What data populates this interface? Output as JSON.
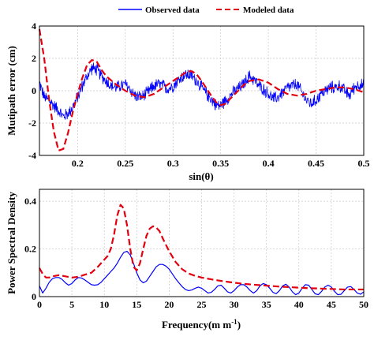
{
  "legend": {
    "items": [
      {
        "label": "Observed data",
        "color": "#0000ff",
        "style": "solid"
      },
      {
        "label": "Modeled data",
        "color": "#e3000f",
        "style": "dashed"
      }
    ]
  },
  "chart_data": [
    {
      "type": "line",
      "xlabel": "sin(θ)",
      "ylabel": "Mutipath error (cm)",
      "xlim": [
        0.16,
        0.5
      ],
      "ylim": [
        -4,
        4
      ],
      "xticks": [
        "0.2",
        "0.25",
        "0.3",
        "0.35",
        "0.4",
        "0.45",
        "0.5"
      ],
      "xtick_values": [
        0.2,
        0.25,
        0.3,
        0.35,
        0.4,
        0.45,
        0.5
      ],
      "yticks": [
        "-4",
        "-2",
        "0",
        "2",
        "4"
      ],
      "ytick_values": [
        -4,
        -2,
        0,
        2,
        4
      ],
      "grid": true,
      "series": [
        {
          "name": "Observed data",
          "color": "#0000ff",
          "style": "solid",
          "noise_amplitude": 0.45,
          "x": [
            0.16,
            0.165,
            0.17,
            0.175,
            0.18,
            0.185,
            0.19,
            0.195,
            0.2,
            0.205,
            0.21,
            0.215,
            0.22,
            0.225,
            0.23,
            0.235,
            0.24,
            0.245,
            0.25,
            0.255,
            0.26,
            0.265,
            0.27,
            0.275,
            0.28,
            0.285,
            0.29,
            0.295,
            0.3,
            0.305,
            0.31,
            0.315,
            0.32,
            0.325,
            0.33,
            0.335,
            0.34,
            0.345,
            0.35,
            0.355,
            0.36,
            0.365,
            0.37,
            0.375,
            0.38,
            0.385,
            0.39,
            0.395,
            0.4,
            0.405,
            0.41,
            0.415,
            0.42,
            0.425,
            0.43,
            0.435,
            0.44,
            0.445,
            0.45,
            0.455,
            0.46,
            0.465,
            0.47,
            0.475,
            0.48,
            0.485,
            0.49,
            0.495,
            0.5
          ],
          "y": [
            0.5,
            -0.4,
            -0.6,
            -0.9,
            -1.2,
            -1.6,
            -1.4,
            -1.0,
            -0.4,
            0.3,
            0.9,
            1.4,
            1.3,
            0.9,
            0.6,
            0.3,
            0.2,
            0.3,
            0.4,
            0.1,
            -0.3,
            -0.4,
            -0.3,
            0.0,
            0.3,
            0.4,
            0.3,
            0.1,
            0.3,
            0.6,
            0.9,
            1.0,
            0.9,
            0.6,
            0.2,
            -0.2,
            -0.5,
            -0.9,
            -0.9,
            -0.6,
            -0.3,
            0.0,
            0.2,
            0.5,
            0.9,
            0.7,
            0.3,
            0.1,
            -0.2,
            -0.5,
            -0.4,
            -0.1,
            0.2,
            0.3,
            0.4,
            -0.1,
            -0.6,
            -0.8,
            -0.6,
            -0.2,
            0.0,
            0.2,
            0.2,
            0.3,
            0.0,
            -0.3,
            0.2,
            0.4,
            0.3
          ]
        },
        {
          "name": "Modeled data",
          "color": "#e3000f",
          "style": "dashed",
          "x": [
            0.16,
            0.165,
            0.17,
            0.175,
            0.18,
            0.185,
            0.19,
            0.195,
            0.2,
            0.205,
            0.21,
            0.215,
            0.22,
            0.225,
            0.23,
            0.24,
            0.25,
            0.26,
            0.27,
            0.28,
            0.29,
            0.3,
            0.31,
            0.315,
            0.32,
            0.325,
            0.33,
            0.34,
            0.345,
            0.35,
            0.355,
            0.36,
            0.37,
            0.375,
            0.38,
            0.39,
            0.4,
            0.41,
            0.42,
            0.43,
            0.44,
            0.45,
            0.46,
            0.47,
            0.48,
            0.49,
            0.5
          ],
          "y": [
            3.8,
            2.0,
            -0.5,
            -2.5,
            -3.7,
            -3.6,
            -2.6,
            -1.3,
            -0.2,
            0.8,
            1.6,
            1.9,
            1.8,
            1.3,
            0.9,
            0.4,
            0.0,
            -0.3,
            -0.4,
            -0.2,
            0.2,
            0.6,
            1.0,
            1.2,
            1.2,
            1.0,
            0.6,
            -0.3,
            -0.7,
            -0.9,
            -0.8,
            -0.5,
            0.1,
            0.4,
            0.6,
            0.7,
            0.5,
            0.1,
            -0.2,
            -0.3,
            -0.2,
            0.0,
            0.1,
            0.2,
            0.2,
            0.1,
            -0.1
          ]
        }
      ]
    },
    {
      "type": "line",
      "xlabel": "Frequency(m m",
      "xlabel_sup": "-1",
      "xlabel_close": ")",
      "ylabel": "Power Spectral Density",
      "xlim": [
        0,
        50
      ],
      "ylim": [
        0,
        0.45
      ],
      "xticks": [
        "0",
        "5",
        "10",
        "15",
        "20",
        "25",
        "30",
        "35",
        "40",
        "45",
        "50"
      ],
      "xtick_values": [
        0,
        5,
        10,
        15,
        20,
        25,
        30,
        35,
        40,
        45,
        50
      ],
      "yticks": [
        "0",
        "0.2",
        "0.4"
      ],
      "ytick_values": [
        0,
        0.2,
        0.4
      ],
      "grid": true,
      "series": [
        {
          "name": "Observed data",
          "color": "#0000ff",
          "style": "solid",
          "x": [
            0,
            0.5,
            1,
            1.5,
            2,
            2.5,
            3,
            3.5,
            4,
            4.5,
            5,
            5.5,
            6,
            6.5,
            7,
            7.5,
            8,
            8.5,
            9,
            9.5,
            10,
            10.5,
            11,
            11.5,
            12,
            12.5,
            13,
            13.5,
            14,
            14.5,
            15,
            15.5,
            16,
            16.5,
            17,
            17.5,
            18,
            18.5,
            19,
            19.5,
            20,
            20.5,
            21,
            21.5,
            22,
            22.5,
            23,
            23.5,
            24,
            24.5,
            25,
            25.5,
            26,
            26.5,
            27,
            27.5,
            28,
            28.5,
            29,
            29.5,
            30,
            30.5,
            31,
            31.5,
            32,
            32.5,
            33,
            33.5,
            34,
            34.5,
            35,
            35.5,
            36,
            36.5,
            37,
            37.5,
            38,
            38.5,
            39,
            39.5,
            40,
            40.5,
            41,
            41.5,
            42,
            42.5,
            43,
            43.5,
            44,
            44.5,
            45,
            45.5,
            46,
            46.5,
            47,
            47.5,
            48,
            48.5,
            49,
            49.5,
            50
          ],
          "y": [
            0.045,
            0.015,
            0.035,
            0.06,
            0.075,
            0.08,
            0.08,
            0.072,
            0.058,
            0.048,
            0.055,
            0.07,
            0.08,
            0.078,
            0.07,
            0.06,
            0.05,
            0.048,
            0.05,
            0.06,
            0.075,
            0.09,
            0.105,
            0.12,
            0.14,
            0.165,
            0.185,
            0.19,
            0.175,
            0.14,
            0.1,
            0.07,
            0.058,
            0.065,
            0.085,
            0.105,
            0.125,
            0.135,
            0.135,
            0.128,
            0.115,
            0.095,
            0.075,
            0.058,
            0.042,
            0.03,
            0.025,
            0.028,
            0.035,
            0.04,
            0.035,
            0.025,
            0.015,
            0.018,
            0.03,
            0.045,
            0.048,
            0.035,
            0.02,
            0.015,
            0.025,
            0.04,
            0.05,
            0.05,
            0.04,
            0.025,
            0.015,
            0.025,
            0.045,
            0.055,
            0.05,
            0.035,
            0.018,
            0.012,
            0.025,
            0.045,
            0.052,
            0.04,
            0.02,
            0.008,
            0.015,
            0.035,
            0.05,
            0.048,
            0.03,
            0.012,
            0.008,
            0.022,
            0.04,
            0.048,
            0.04,
            0.022,
            0.008,
            0.01,
            0.025,
            0.04,
            0.042,
            0.03,
            0.015,
            0.01,
            0.02
          ]
        },
        {
          "name": "Modeled data",
          "color": "#e3000f",
          "style": "dashed",
          "x": [
            0,
            0.5,
            1,
            1.5,
            2,
            3,
            4,
            5,
            6,
            7,
            8,
            9,
            10,
            10.5,
            11,
            11.5,
            12,
            12.5,
            13,
            13.5,
            14,
            14.5,
            15,
            15.5,
            16,
            16.5,
            17,
            17.5,
            18,
            18.5,
            19,
            20,
            21,
            22,
            23,
            24,
            25,
            27,
            29,
            31,
            33,
            35,
            37,
            39,
            41,
            43,
            45,
            47,
            50
          ],
          "y": [
            0.12,
            0.095,
            0.08,
            0.08,
            0.085,
            0.09,
            0.085,
            0.08,
            0.083,
            0.092,
            0.1,
            0.125,
            0.155,
            0.17,
            0.2,
            0.26,
            0.34,
            0.385,
            0.37,
            0.3,
            0.2,
            0.125,
            0.11,
            0.14,
            0.2,
            0.255,
            0.285,
            0.295,
            0.29,
            0.275,
            0.245,
            0.19,
            0.145,
            0.115,
            0.097,
            0.087,
            0.08,
            0.07,
            0.062,
            0.055,
            0.05,
            0.046,
            0.042,
            0.039,
            0.036,
            0.034,
            0.032,
            0.03,
            0.03
          ]
        }
      ]
    }
  ]
}
